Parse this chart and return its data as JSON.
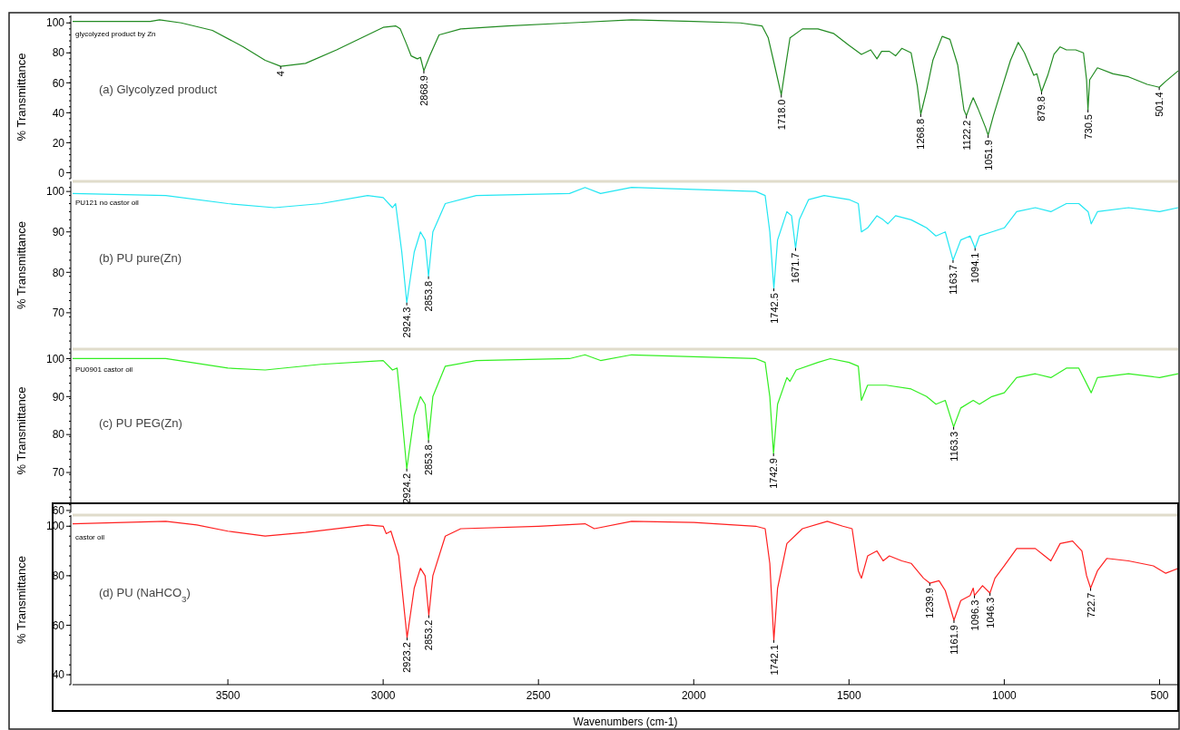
{
  "chart_data": [
    {
      "type": "line",
      "title": "glycolyzed product by Zn",
      "ylabel": "% Transmittance",
      "xlim": [
        4000,
        440
      ],
      "ylim": [
        -4,
        105
      ],
      "yticks": [
        0,
        20,
        40,
        60,
        80,
        100
      ],
      "tick_labels": "y",
      "series": [
        {
          "color": "#228b22",
          "x": [
            4000,
            3750,
            3720,
            3650,
            3550,
            3450,
            3380,
            3330,
            3250,
            3150,
            3050,
            3000,
            2960,
            2945,
            2925,
            2910,
            2890,
            2880,
            2869,
            2850,
            2820,
            2750,
            2600,
            2400,
            2200,
            2000,
            1850,
            1780,
            1760,
            1740,
            1718,
            1705,
            1690,
            1650,
            1600,
            1550,
            1500,
            1460,
            1430,
            1410,
            1395,
            1370,
            1350,
            1330,
            1300,
            1280,
            1269,
            1250,
            1230,
            1200,
            1175,
            1150,
            1130,
            1122,
            1110,
            1100,
            1085,
            1060,
            1052,
            1035,
            1010,
            980,
            955,
            935,
            905,
            895,
            880,
            860,
            840,
            820,
            800,
            770,
            745,
            735,
            730.5,
            725,
            700,
            650,
            600,
            540,
            501,
            480,
            440
          ],
          "values": [
            101,
            101,
            102,
            100,
            95,
            84,
            75,
            71,
            73,
            82,
            92,
            97,
            98,
            96,
            86,
            78,
            76,
            77,
            68,
            78,
            92,
            96,
            98,
            100,
            102,
            101,
            100,
            98,
            90,
            72,
            52,
            70,
            90,
            96,
            96,
            93,
            85,
            79,
            82,
            76,
            81,
            81,
            78,
            83,
            80,
            58,
            39,
            55,
            75,
            91,
            89,
            72,
            42,
            38,
            45,
            50,
            43,
            30,
            25,
            38,
            55,
            75,
            87,
            80,
            65,
            66,
            54,
            65,
            79,
            84,
            82,
            82,
            80,
            62,
            42,
            62,
            70,
            66,
            64,
            59,
            57,
            61,
            68
          ]
        }
      ],
      "annotations": [
        "(a) Glycolyzed product",
        {
          "text": "4",
          "x": 3330,
          "y": 71
        },
        {
          "text": "2868.9",
          "x": 2869,
          "y": 68
        },
        {
          "text": "1718.0",
          "x": 1718,
          "y": 52
        },
        {
          "text": "1268.8",
          "x": 1269,
          "y": 39
        },
        {
          "text": "1122.2",
          "x": 1122,
          "y": 38
        },
        {
          "text": "1051.9",
          "x": 1052,
          "y": 25
        },
        {
          "text": "879.8",
          "x": 880,
          "y": 54
        },
        {
          "text": "730.5",
          "x": 730.5,
          "y": 42
        },
        {
          "text": "501.4",
          "x": 501,
          "y": 57
        }
      ]
    },
    {
      "type": "line",
      "title": "PU121 no castor oil",
      "ylabel": "% Transmittance",
      "xlim": [
        4000,
        440
      ],
      "ylim": [
        61,
        102.5
      ],
      "yticks": [
        70,
        80,
        90,
        100
      ],
      "tick_labels": "y",
      "series": [
        {
          "color": "#22e6f2",
          "x": [
            4000,
            3700,
            3500,
            3350,
            3200,
            3050,
            3000,
            2970,
            2960,
            2940,
            2924,
            2900,
            2880,
            2865,
            2854,
            2840,
            2800,
            2700,
            2400,
            2350,
            2300,
            2200,
            2000,
            1800,
            1770,
            1755,
            1742,
            1730,
            1700,
            1685,
            1672,
            1660,
            1630,
            1580,
            1500,
            1470,
            1460,
            1440,
            1410,
            1390,
            1375,
            1350,
            1300,
            1250,
            1220,
            1190,
            1165,
            1140,
            1110,
            1094,
            1080,
            1040,
            1000,
            960,
            900,
            850,
            800,
            760,
            730,
            720,
            700,
            600,
            500,
            440
          ],
          "values": [
            99.5,
            99,
            97,
            96,
            97,
            99,
            98.5,
            96,
            97,
            85,
            72.5,
            85,
            90,
            88,
            79,
            90,
            97,
            99,
            99.5,
            101,
            99.5,
            101,
            100.5,
            100,
            99,
            90,
            76,
            88,
            95,
            94,
            86,
            93,
            98,
            99,
            98,
            97,
            90,
            91,
            94,
            93,
            92,
            94,
            93,
            91,
            89,
            90,
            83,
            88,
            89,
            86,
            89,
            90,
            91,
            95,
            96,
            95,
            97,
            97,
            95,
            92,
            95,
            96,
            95,
            96
          ]
        }
      ],
      "annotations": [
        "(b) PU pure(Zn)",
        {
          "text": "2924.3",
          "x": 2924,
          "y": 72.5
        },
        {
          "text": "2853.8",
          "x": 2854,
          "y": 79
        },
        {
          "text": "1742.5",
          "x": 1742,
          "y": 76
        },
        {
          "text": "1671.7",
          "x": 1672,
          "y": 86
        },
        {
          "text": "1163.7",
          "x": 1165,
          "y": 83
        },
        {
          "text": "1094.1",
          "x": 1094,
          "y": 86
        }
      ]
    },
    {
      "type": "line",
      "title": "PU0901 castor oil",
      "ylabel": "% Transmittance",
      "xlim": [
        4000,
        440
      ],
      "ylim": [
        59.5,
        102.5
      ],
      "yticks": [
        60,
        70,
        80,
        90,
        100
      ],
      "tick_labels": "y",
      "series": [
        {
          "color": "#33ee22",
          "x": [
            4000,
            3700,
            3500,
            3380,
            3200,
            3000,
            2970,
            2955,
            2940,
            2924,
            2900,
            2880,
            2865,
            2854,
            2840,
            2800,
            2700,
            2400,
            2350,
            2300,
            2200,
            2000,
            1800,
            1770,
            1755,
            1743,
            1730,
            1700,
            1690,
            1670,
            1600,
            1560,
            1500,
            1470,
            1460,
            1440,
            1400,
            1380,
            1300,
            1250,
            1220,
            1190,
            1163,
            1140,
            1100,
            1080,
            1040,
            1000,
            960,
            900,
            850,
            800,
            760,
            720,
            700,
            600,
            500,
            440
          ],
          "values": [
            100,
            100,
            97.5,
            97,
            98.5,
            99.5,
            97,
            97.5,
            85,
            71,
            85,
            90,
            88,
            78.5,
            90,
            98,
            99.5,
            100,
            101,
            99.5,
            101,
            100.5,
            100,
            99,
            90,
            75,
            88,
            95,
            94,
            97,
            99,
            100,
            99,
            98,
            89,
            93,
            93,
            93,
            92,
            90,
            88,
            89,
            82,
            87,
            89,
            88,
            90,
            91,
            95,
            96,
            95,
            97.5,
            97.5,
            91,
            95,
            96,
            95,
            96
          ]
        }
      ],
      "annotations": [
        "(c) PU PEG(Zn)",
        {
          "text": "2924.2",
          "x": 2924,
          "y": 71
        },
        {
          "text": "2853.8",
          "x": 2854,
          "y": 78.5
        },
        {
          "text": "1742.9",
          "x": 1743,
          "y": 75
        },
        {
          "text": "1163.3",
          "x": 1163,
          "y": 82
        }
      ]
    },
    {
      "type": "line",
      "title": "castor oil",
      "xlabel": "Wavenumbers (cm-1)",
      "ylabel": "% Transmittance",
      "xlim": [
        4000,
        440
      ],
      "xticks": [
        3500,
        3000,
        2500,
        2000,
        1500,
        1000,
        500
      ],
      "ylim": [
        36,
        104.5
      ],
      "yticks": [
        40,
        60,
        80,
        100
      ],
      "series": [
        {
          "color": "#ff2020",
          "x": [
            4000,
            3700,
            3600,
            3500,
            3380,
            3250,
            3050,
            3000,
            2990,
            2975,
            2950,
            2923,
            2900,
            2880,
            2865,
            2853,
            2840,
            2800,
            2750,
            2500,
            2350,
            2320,
            2200,
            2000,
            1800,
            1770,
            1755,
            1742,
            1730,
            1700,
            1650,
            1570,
            1520,
            1490,
            1470,
            1460,
            1440,
            1410,
            1390,
            1370,
            1330,
            1300,
            1260,
            1240,
            1210,
            1190,
            1162,
            1140,
            1110,
            1100,
            1096,
            1070,
            1046,
            1030,
            1000,
            960,
            900,
            870,
            850,
            820,
            780,
            750,
            735,
            722,
            700,
            670,
            600,
            520,
            480,
            440
          ],
          "values": [
            101,
            102,
            100.5,
            98,
            96,
            97.5,
            100.5,
            100,
            97,
            98,
            88,
            55,
            75,
            83,
            80,
            64,
            80,
            96,
            99,
            100,
            101,
            99,
            102,
            101.5,
            100,
            99,
            85,
            54,
            75,
            93,
            99,
            102,
            100,
            99,
            82,
            79,
            88,
            90,
            86,
            88,
            86,
            85,
            79,
            77,
            78,
            74,
            62,
            70,
            72,
            75,
            72,
            76,
            73,
            79,
            84,
            91,
            91,
            88,
            86,
            93,
            94,
            90,
            80,
            75,
            82,
            87,
            86,
            84,
            81,
            83
          ]
        }
      ],
      "annotations": [
        "(d) PU (NaHCO$_{3}$)",
        {
          "text": "2923.2",
          "x": 2923,
          "y": 55
        },
        {
          "text": "2853.2",
          "x": 2853,
          "y": 64
        },
        {
          "text": "1742.1",
          "x": 1742,
          "y": 54
        },
        {
          "text": "1239.9",
          "x": 1240,
          "y": 77
        },
        {
          "text": "1161.9",
          "x": 1162,
          "y": 62
        },
        {
          "text": "1096.3",
          "x": 1096,
          "y": 72
        },
        {
          "text": "1046.3",
          "x": 1046,
          "y": 73
        },
        {
          "text": "722.7",
          "x": 722,
          "y": 75
        }
      ]
    }
  ]
}
